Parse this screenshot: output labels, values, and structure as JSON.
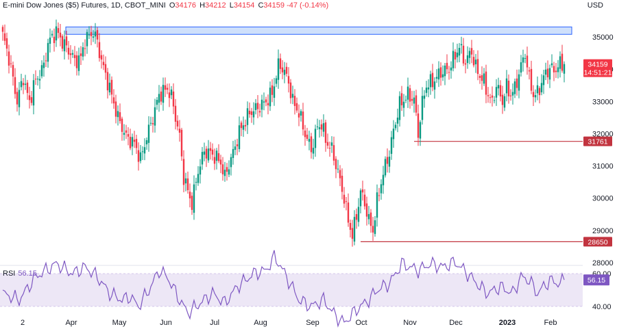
{
  "header": {
    "symbol": "E-mini Dow Jones ($5) Futures, 1D, CBOT_MINI",
    "o_label": "O",
    "o_value": "34176",
    "h_label": "H",
    "h_value": "34212",
    "l_label": "L",
    "l_value": "34154",
    "c_label": "C",
    "c_value": "34159",
    "change": "-47 (-0.14%)"
  },
  "currency": "USD",
  "rsi": {
    "label": "RSI",
    "value": "56.15",
    "ticks": [
      "60.00",
      "40.00"
    ],
    "last": 56.15
  },
  "colors": {
    "up": "#089981",
    "down": "#f23645",
    "rsi": "#7e57c2",
    "rsi_band": "#ede7f6",
    "zone_fill": "#cfe0fb",
    "zone_border": "#2962ff",
    "level": "#c2343f"
  },
  "chart_data": {
    "type": "candlestick",
    "title": "E-mini Dow Jones ($5) Futures, 1D, CBOT_MINI",
    "price_axis": {
      "ticks": [
        35000,
        34000,
        33000,
        32000,
        31000,
        30000,
        29000,
        28000
      ],
      "range": [
        27900,
        35700
      ]
    },
    "time_axis": {
      "labels": [
        "2",
        "Apr",
        "May",
        "Jun",
        "Jul",
        "Aug",
        "Sep",
        "Oct",
        "Nov",
        "Dec",
        "2023",
        "Feb"
      ]
    },
    "last_price": {
      "value": 34159,
      "label": "34159",
      "countdown": "14:51:21"
    },
    "levels": [
      {
        "value": 31761,
        "label": "31761"
      },
      {
        "value": 28650,
        "label": "28650"
      }
    ],
    "resistance_zone": {
      "from": 35080,
      "to": 35310
    },
    "anchors": [
      [
        0,
        35050
      ],
      [
        3,
        34350
      ],
      [
        7,
        33000
      ],
      [
        10,
        33750
      ],
      [
        12,
        33200
      ],
      [
        13,
        32950
      ],
      [
        15,
        33500
      ],
      [
        20,
        34100
      ],
      [
        22,
        34800
      ],
      [
        26,
        35180
      ],
      [
        30,
        34750
      ],
      [
        33,
        34500
      ],
      [
        35,
        34250
      ],
      [
        38,
        34350
      ],
      [
        40,
        34900
      ],
      [
        44,
        35150
      ],
      [
        46,
        34850
      ],
      [
        48,
        34250
      ],
      [
        52,
        33400
      ],
      [
        56,
        32500
      ],
      [
        60,
        31900
      ],
      [
        64,
        31700
      ],
      [
        67,
        31200
      ],
      [
        70,
        31900
      ],
      [
        73,
        32500
      ],
      [
        76,
        33200
      ],
      [
        80,
        33400
      ],
      [
        82,
        33150
      ],
      [
        86,
        31900
      ],
      [
        88,
        30650
      ],
      [
        91,
        30000
      ],
      [
        92,
        29850
      ],
      [
        95,
        30850
      ],
      [
        98,
        31450
      ],
      [
        101,
        31400
      ],
      [
        103,
        31300
      ],
      [
        106,
        31100
      ],
      [
        108,
        30650
      ],
      [
        110,
        31050
      ],
      [
        112,
        31400
      ],
      [
        115,
        32050
      ],
      [
        120,
        32650
      ],
      [
        124,
        32800
      ],
      [
        128,
        33000
      ],
      [
        131,
        33250
      ],
      [
        134,
        34100
      ],
      [
        136,
        34050
      ],
      [
        139,
        33600
      ],
      [
        141,
        33000
      ],
      [
        144,
        32650
      ],
      [
        147,
        32000
      ],
      [
        150,
        31500
      ],
      [
        153,
        32200
      ],
      [
        155,
        32300
      ],
      [
        157,
        31800
      ],
      [
        160,
        31500
      ],
      [
        163,
        30800
      ],
      [
        166,
        30000
      ],
      [
        168,
        29300
      ],
      [
        170,
        28850
      ],
      [
        172,
        29450
      ],
      [
        174,
        30200
      ],
      [
        176,
        29850
      ],
      [
        178,
        29300
      ],
      [
        180,
        29000
      ],
      [
        182,
        29900
      ],
      [
        184,
        30500
      ],
      [
        186,
        31000
      ],
      [
        188,
        31400
      ],
      [
        190,
        32100
      ],
      [
        193,
        32900
      ],
      [
        197,
        33200
      ],
      [
        200,
        33050
      ],
      [
        202,
        32000
      ],
      [
        204,
        32950
      ],
      [
        206,
        33500
      ],
      [
        209,
        33600
      ],
      [
        213,
        33900
      ],
      [
        217,
        34000
      ],
      [
        219,
        34300
      ],
      [
        222,
        34700
      ],
      [
        225,
        34200
      ],
      [
        228,
        34600
      ],
      [
        229,
        34200
      ],
      [
        232,
        33800
      ],
      [
        234,
        33600
      ],
      [
        236,
        33200
      ],
      [
        238,
        32950
      ],
      [
        240,
        33500
      ],
      [
        243,
        33000
      ],
      [
        245,
        33450
      ],
      [
        247,
        33200
      ],
      [
        249,
        33400
      ],
      [
        252,
        34100
      ],
      [
        254,
        34500
      ],
      [
        256,
        33700
      ],
      [
        258,
        33200
      ],
      [
        260,
        33250
      ],
      [
        263,
        33750
      ],
      [
        266,
        34050
      ],
      [
        268,
        33950
      ],
      [
        271,
        34150
      ],
      [
        273,
        34150
      ]
    ],
    "rsi_anchors": [
      [
        0,
        48
      ],
      [
        8,
        44
      ],
      [
        16,
        58
      ],
      [
        26,
        66
      ],
      [
        34,
        60
      ],
      [
        40,
        64
      ],
      [
        46,
        58
      ],
      [
        52,
        48
      ],
      [
        58,
        44
      ],
      [
        62,
        46
      ],
      [
        66,
        40
      ],
      [
        72,
        52
      ],
      [
        76,
        62
      ],
      [
        80,
        58
      ],
      [
        86,
        44
      ],
      [
        90,
        36
      ],
      [
        96,
        42
      ],
      [
        102,
        48
      ],
      [
        108,
        42
      ],
      [
        114,
        52
      ],
      [
        122,
        60
      ],
      [
        128,
        62
      ],
      [
        132,
        70
      ],
      [
        134,
        67
      ],
      [
        138,
        58
      ],
      [
        144,
        44
      ],
      [
        150,
        40
      ],
      [
        156,
        44
      ],
      [
        162,
        34
      ],
      [
        166,
        30
      ],
      [
        172,
        38
      ],
      [
        178,
        44
      ],
      [
        182,
        50
      ],
      [
        188,
        54
      ],
      [
        194,
        66
      ],
      [
        202,
        62
      ],
      [
        208,
        66
      ],
      [
        214,
        64
      ],
      [
        220,
        67
      ],
      [
        226,
        60
      ],
      [
        232,
        52
      ],
      [
        236,
        48
      ],
      [
        242,
        52
      ],
      [
        248,
        48
      ],
      [
        252,
        58
      ],
      [
        256,
        56
      ],
      [
        260,
        48
      ],
      [
        266,
        56
      ],
      [
        270,
        54
      ],
      [
        273,
        56
      ]
    ]
  }
}
